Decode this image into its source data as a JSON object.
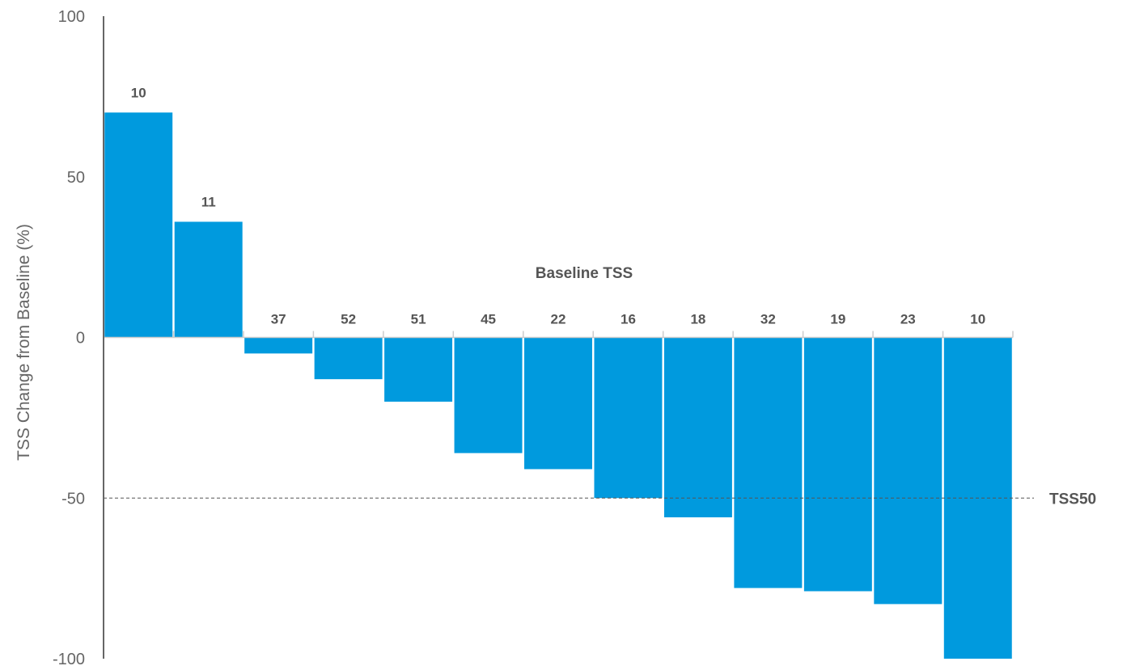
{
  "chart_data": {
    "type": "bar",
    "title": "",
    "xlabel": "",
    "ylabel": "TSS Change from Baseline (%)",
    "ylim": [
      -100,
      100
    ],
    "yticks": [
      "100",
      "50",
      "0",
      "-50",
      "-100"
    ],
    "categories": [
      "10",
      "11",
      "37",
      "52",
      "51",
      "45",
      "22",
      "16",
      "18",
      "32",
      "19",
      "23",
      "10"
    ],
    "values": [
      70,
      36,
      -5,
      -13,
      -20,
      -36,
      -41,
      -50,
      -56,
      -78,
      -79,
      -83,
      -100
    ],
    "category_title": "Baseline TSS",
    "reference_line": {
      "value": -50,
      "label": "TSS50",
      "style": "dashed"
    },
    "grid": false,
    "colors": {
      "bar": "#009ADE",
      "axis": "#666666",
      "reference_line": "#555555",
      "tick_mark": "#cccccc"
    }
  }
}
